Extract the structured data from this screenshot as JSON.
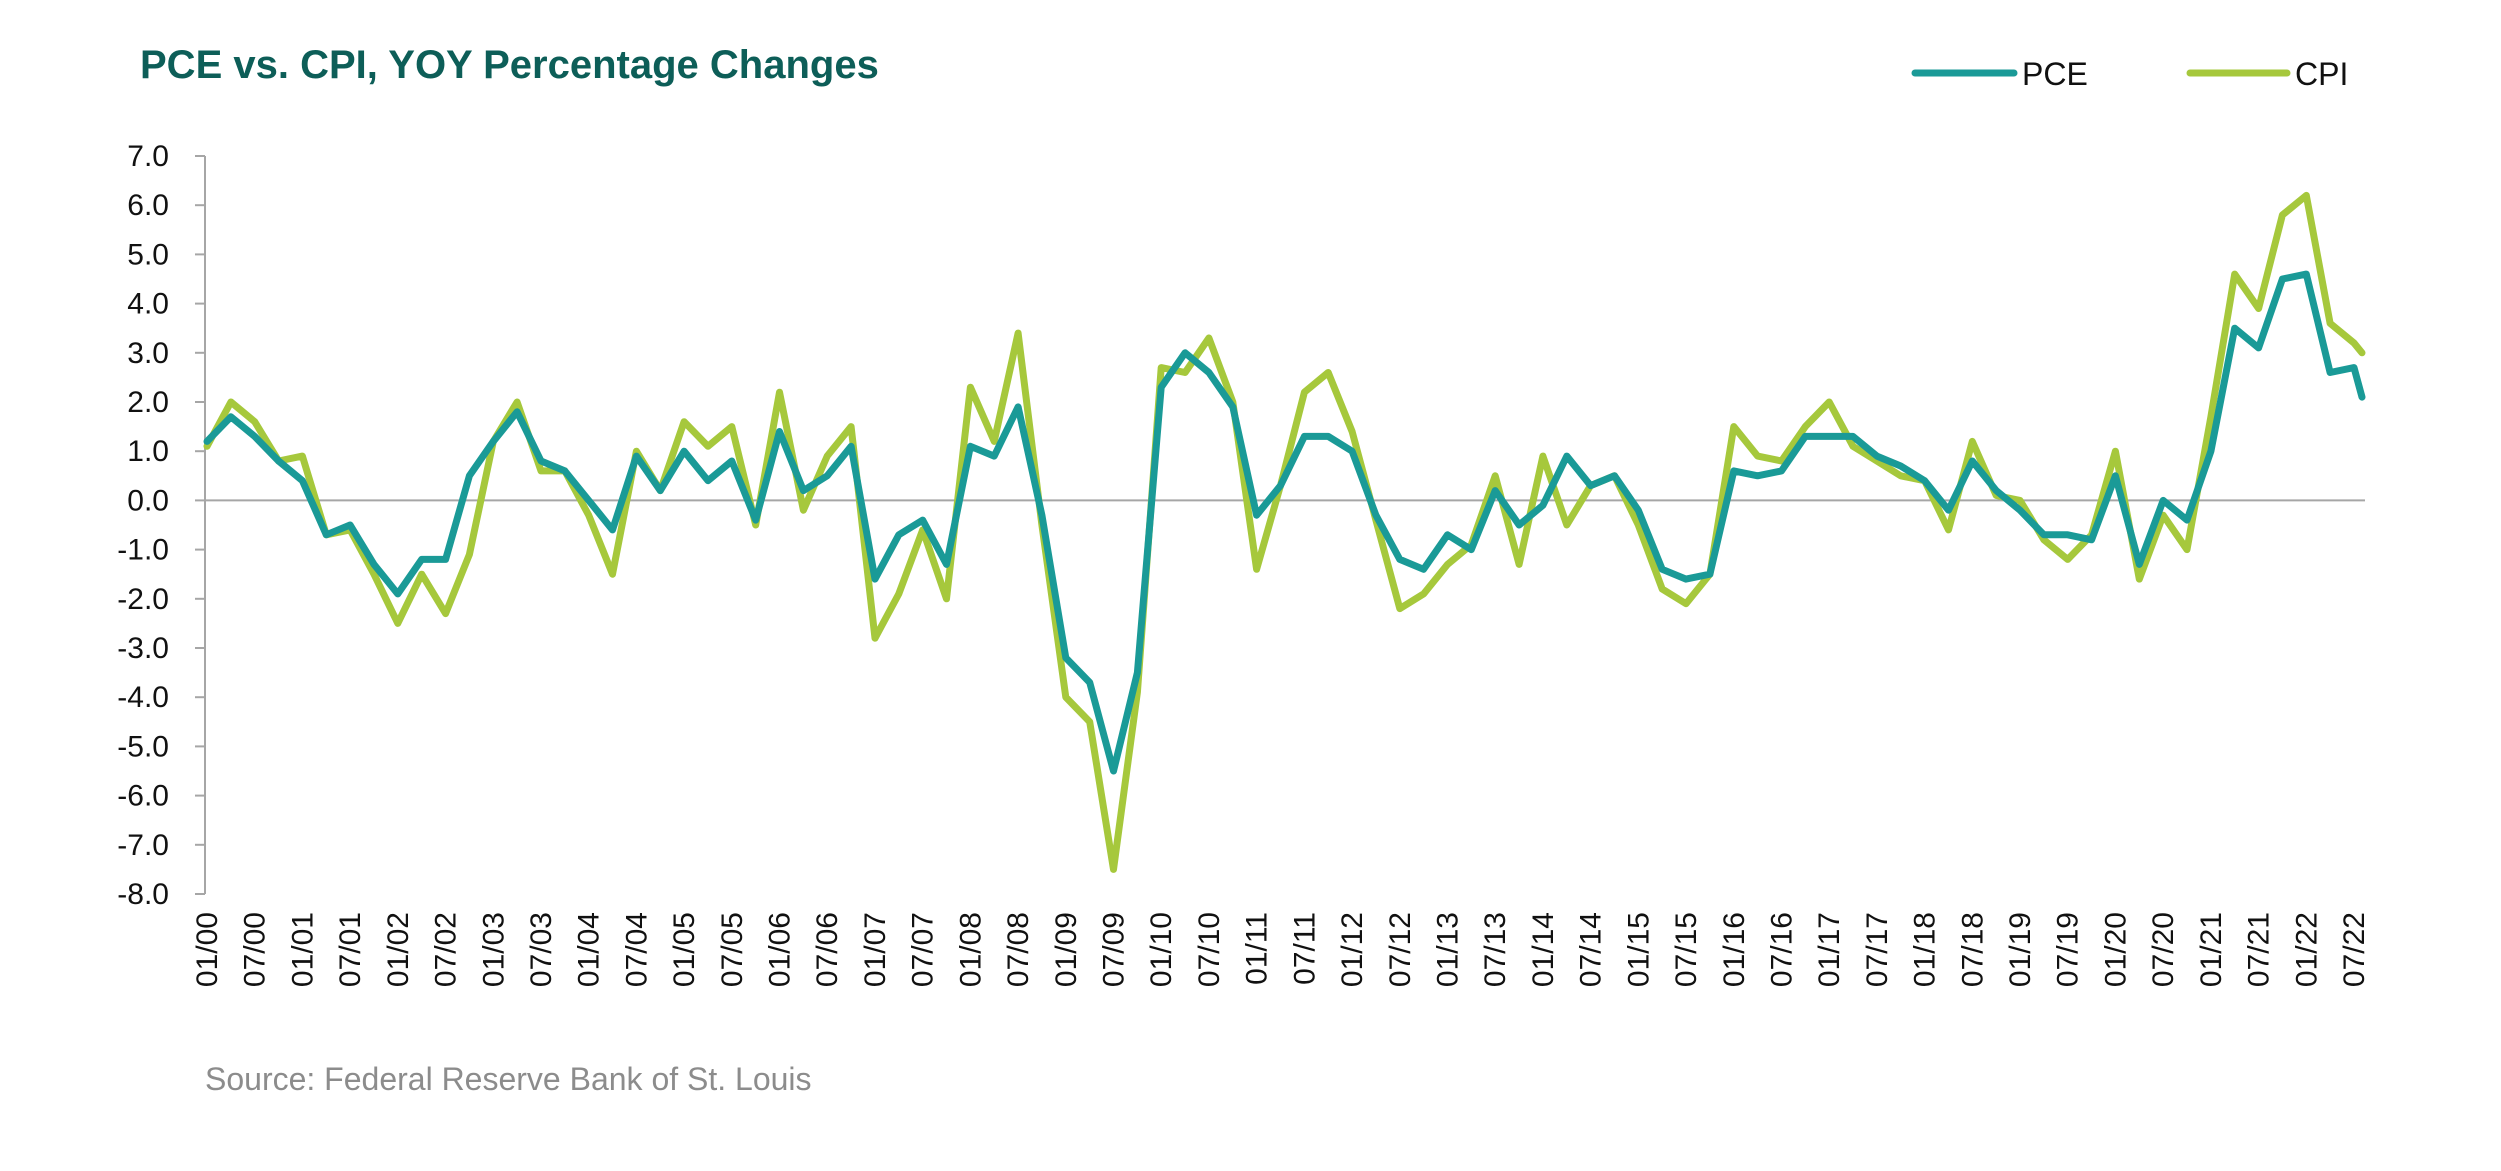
{
  "chart_data": {
    "type": "line",
    "title": "PCE vs. CPI, YOY Percentage Changes",
    "source": "Source: Federal Reserve Bank of St. Louis",
    "xlabel": "",
    "ylabel": "",
    "ylim": [
      -8.0,
      7.0
    ],
    "y_ticks": [
      "7.0",
      "6.0",
      "5.0",
      "4.0",
      "3.0",
      "2.0",
      "1.0",
      "0.0",
      "-1.0",
      "-2.0",
      "-3.0",
      "-4.0",
      "-5.0",
      "-6.0",
      "-7.0",
      "-8.0"
    ],
    "x_ticks": [
      "01/00",
      "07/00",
      "01/01",
      "07/01",
      "01/02",
      "07/02",
      "01/03",
      "07/03",
      "01/04",
      "07/04",
      "01/05",
      "07/05",
      "01/06",
      "07/06",
      "01/07",
      "07/07",
      "01/08",
      "07/08",
      "01/09",
      "07/09",
      "01/10",
      "07/10",
      "01/11",
      "07/11",
      "01/12",
      "07/12",
      "01/13",
      "07/13",
      "01/14",
      "07/14",
      "01/15",
      "07/15",
      "01/16",
      "07/16",
      "01/17",
      "07/17",
      "01/18",
      "07/18",
      "01/19",
      "07/19",
      "01/20",
      "07/20",
      "01/21",
      "07/21",
      "01/22",
      "07/22"
    ],
    "grid": false,
    "legend_position": "top-right",
    "x_start": "2000-01",
    "colors": {
      "PCE": "#1a9a97",
      "CPI": "#a6c83c",
      "title": "#0d5e58",
      "zero_line": "#a6a6a6"
    },
    "series": [
      {
        "name": "PCE",
        "x": [
          "2000-01",
          "2000-04",
          "2000-07",
          "2000-10",
          "2001-01",
          "2001-04",
          "2001-07",
          "2001-10",
          "2002-01",
          "2002-04",
          "2002-07",
          "2002-10",
          "2003-01",
          "2003-04",
          "2003-07",
          "2003-10",
          "2004-01",
          "2004-04",
          "2004-07",
          "2004-10",
          "2005-01",
          "2005-04",
          "2005-07",
          "2005-10",
          "2006-01",
          "2006-04",
          "2006-07",
          "2006-10",
          "2007-01",
          "2007-04",
          "2007-07",
          "2007-10",
          "2008-01",
          "2008-04",
          "2008-07",
          "2008-10",
          "2009-01",
          "2009-04",
          "2009-07",
          "2009-10",
          "2010-01",
          "2010-04",
          "2010-07",
          "2010-10",
          "2011-01",
          "2011-04",
          "2011-07",
          "2011-10",
          "2012-01",
          "2012-04",
          "2012-07",
          "2012-10",
          "2013-01",
          "2013-04",
          "2013-07",
          "2013-10",
          "2014-01",
          "2014-04",
          "2014-07",
          "2014-10",
          "2015-01",
          "2015-04",
          "2015-07",
          "2015-10",
          "2016-01",
          "2016-04",
          "2016-07",
          "2016-10",
          "2017-01",
          "2017-04",
          "2017-07",
          "2017-10",
          "2018-01",
          "2018-04",
          "2018-07",
          "2018-10",
          "2019-01",
          "2019-04",
          "2019-07",
          "2019-10",
          "2020-01",
          "2020-04",
          "2020-07",
          "2020-10",
          "2021-01",
          "2021-04",
          "2021-07",
          "2021-10",
          "2022-01",
          "2022-04",
          "2022-07",
          "2022-08"
        ],
        "values": [
          1.2,
          1.7,
          1.3,
          0.8,
          0.4,
          -0.7,
          -0.5,
          -1.3,
          -1.9,
          -1.2,
          -1.2,
          0.5,
          1.2,
          1.8,
          0.8,
          0.6,
          0.0,
          -0.6,
          0.9,
          0.2,
          1.0,
          0.4,
          0.8,
          -0.4,
          1.4,
          0.2,
          0.5,
          1.1,
          -1.6,
          -0.7,
          -0.4,
          -1.3,
          1.1,
          0.9,
          1.9,
          -0.3,
          -3.2,
          -3.7,
          -5.5,
          -3.5,
          2.3,
          3.0,
          2.6,
          1.9,
          -0.3,
          0.3,
          1.3,
          1.3,
          1.0,
          -0.3,
          -1.2,
          -1.4,
          -0.7,
          -1.0,
          0.2,
          -0.5,
          -0.1,
          0.9,
          0.3,
          0.5,
          -0.2,
          -1.4,
          -1.6,
          -1.5,
          0.6,
          0.5,
          0.6,
          1.3,
          1.3,
          1.3,
          0.9,
          0.7,
          0.4,
          -0.2,
          0.8,
          0.2,
          -0.2,
          -0.7,
          -0.7,
          -0.8,
          0.5,
          -1.3,
          0.0,
          -0.4,
          1.0,
          3.5,
          3.1,
          4.5,
          4.6,
          2.6,
          2.7,
          2.1
        ]
      },
      {
        "name": "CPI",
        "x": [
          "2000-01",
          "2000-04",
          "2000-07",
          "2000-10",
          "2001-01",
          "2001-04",
          "2001-07",
          "2001-10",
          "2002-01",
          "2002-04",
          "2002-07",
          "2002-10",
          "2003-01",
          "2003-04",
          "2003-07",
          "2003-10",
          "2004-01",
          "2004-04",
          "2004-07",
          "2004-10",
          "2005-01",
          "2005-04",
          "2005-07",
          "2005-10",
          "2006-01",
          "2006-04",
          "2006-07",
          "2006-10",
          "2007-01",
          "2007-04",
          "2007-07",
          "2007-10",
          "2008-01",
          "2008-04",
          "2008-07",
          "2008-10",
          "2009-01",
          "2009-04",
          "2009-07",
          "2009-10",
          "2010-01",
          "2010-04",
          "2010-07",
          "2010-10",
          "2011-01",
          "2011-04",
          "2011-07",
          "2011-10",
          "2012-01",
          "2012-04",
          "2012-07",
          "2012-10",
          "2013-01",
          "2013-04",
          "2013-07",
          "2013-10",
          "2014-01",
          "2014-04",
          "2014-07",
          "2014-10",
          "2015-01",
          "2015-04",
          "2015-07",
          "2015-10",
          "2016-01",
          "2016-04",
          "2016-07",
          "2016-10",
          "2017-01",
          "2017-04",
          "2017-07",
          "2017-10",
          "2018-01",
          "2018-04",
          "2018-07",
          "2018-10",
          "2019-01",
          "2019-04",
          "2019-07",
          "2019-10",
          "2020-01",
          "2020-04",
          "2020-07",
          "2020-10",
          "2021-01",
          "2021-04",
          "2021-07",
          "2021-10",
          "2022-01",
          "2022-04",
          "2022-07",
          "2022-08"
        ],
        "values": [
          1.1,
          2.0,
          1.6,
          0.8,
          0.9,
          -0.7,
          -0.6,
          -1.5,
          -2.5,
          -1.5,
          -2.3,
          -1.1,
          1.2,
          2.0,
          0.6,
          0.6,
          -0.3,
          -1.5,
          1.0,
          0.2,
          1.6,
          1.1,
          1.5,
          -0.5,
          2.2,
          -0.2,
          0.9,
          1.5,
          -2.8,
          -1.9,
          -0.6,
          -2.0,
          2.3,
          1.2,
          3.4,
          -0.5,
          -4.0,
          -4.5,
          -7.5,
          -3.9,
          2.7,
          2.6,
          3.3,
          2.0,
          -1.4,
          0.3,
          2.2,
          2.6,
          1.4,
          -0.4,
          -2.2,
          -1.9,
          -1.3,
          -0.9,
          0.5,
          -1.3,
          0.9,
          -0.5,
          0.3,
          0.5,
          -0.5,
          -1.8,
          -2.1,
          -1.5,
          1.5,
          0.9,
          0.8,
          1.5,
          2.0,
          1.1,
          0.8,
          0.5,
          0.4,
          -0.6,
          1.2,
          0.1,
          0.0,
          -0.8,
          -1.2,
          -0.7,
          1.0,
          -1.6,
          -0.3,
          -1.0,
          1.7,
          4.6,
          3.9,
          5.8,
          6.2,
          3.6,
          3.2,
          3.0
        ]
      }
    ]
  }
}
